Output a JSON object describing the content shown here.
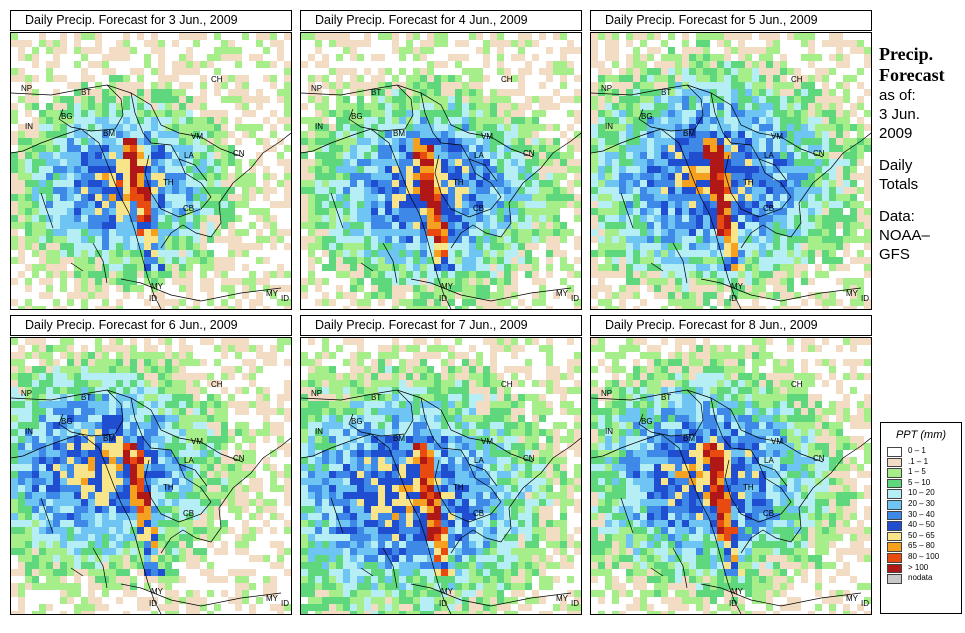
{
  "panels": [
    {
      "title": "Daily Precip. Forecast for  3 Jun., 2009",
      "seed": 11,
      "center": [
        0.38,
        0.53
      ],
      "spread": 0.22
    },
    {
      "title": "Daily Precip. Forecast for  4 Jun., 2009",
      "seed": 23,
      "center": [
        0.45,
        0.55
      ],
      "spread": 0.25
    },
    {
      "title": "Daily Precip. Forecast for  5 Jun., 2009",
      "seed": 37,
      "center": [
        0.42,
        0.5
      ],
      "spread": 0.28
    },
    {
      "title": "Daily Precip. Forecast for  6 Jun., 2009",
      "seed": 41,
      "center": [
        0.3,
        0.45
      ],
      "spread": 0.26
    },
    {
      "title": "Daily Precip. Forecast for  7 Jun., 2009",
      "seed": 53,
      "center": [
        0.35,
        0.55
      ],
      "spread": 0.3
    },
    {
      "title": "Daily Precip. Forecast for  8 Jun., 2009",
      "seed": 67,
      "center": [
        0.4,
        0.48
      ],
      "spread": 0.27
    }
  ],
  "map_labels": [
    "NP",
    "BT",
    "BG",
    "IN",
    "BM",
    "CH",
    "VM",
    "LA",
    "CN",
    "TH",
    "CB",
    "MY",
    "ID",
    "MY",
    "ID"
  ],
  "sidebar": {
    "heading1": "Precip.",
    "heading2": "Forecast",
    "as_of": "as of:",
    "date1": "3 Jun.",
    "date2": "2009",
    "daily": "Daily",
    "totals": "Totals",
    "data": "Data:",
    "source1": "NOAA–",
    "source2": "GFS"
  },
  "legend": {
    "title": "PPT (mm)",
    "items": [
      {
        "label": "0 – 1",
        "color": "#ffffff"
      },
      {
        "label": ".1 – 1",
        "color": "#f2dcc3"
      },
      {
        "label": "1 – 5",
        "color": "#a6ee8a"
      },
      {
        "label": "5 – 10",
        "color": "#5fd87d"
      },
      {
        "label": "10 – 20",
        "color": "#b6eef5"
      },
      {
        "label": "20 – 30",
        "color": "#6ec4f2"
      },
      {
        "label": "30 – 40",
        "color": "#3e88e8"
      },
      {
        "label": "40 – 50",
        "color": "#1f4fd0"
      },
      {
        "label": "50 – 65",
        "color": "#f8e58a"
      },
      {
        "label": "65 – 80",
        "color": "#f6a020"
      },
      {
        "label": "80 – 100",
        "color": "#e84a10"
      },
      {
        "label": "> 100",
        "color": "#b01818"
      },
      {
        "label": "nodata",
        "color": "#c8c8c8"
      }
    ]
  }
}
